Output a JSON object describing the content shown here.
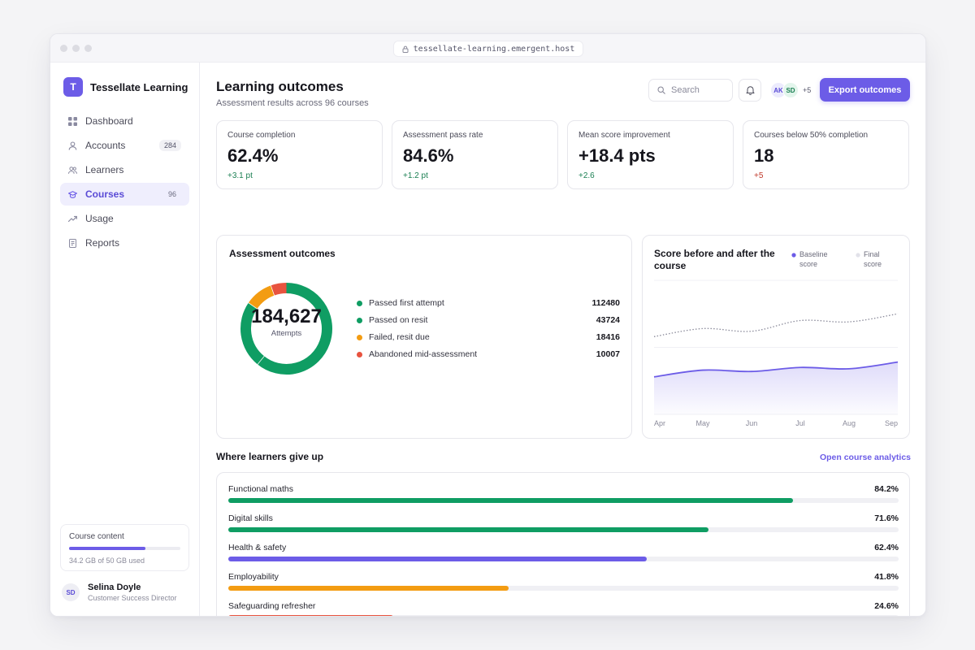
{
  "browser": {
    "url": "tessellate-learning.emergent.host"
  },
  "brand": {
    "logo_letter": "T",
    "name": "Tessellate Learning",
    "accent": "#6c5ce7"
  },
  "sidebar": {
    "items": [
      {
        "label": "Dashboard",
        "icon": "grid-icon",
        "badge": ""
      },
      {
        "label": "Accounts",
        "icon": "user-icon",
        "badge": "284"
      },
      {
        "label": "Learners",
        "icon": "users-icon",
        "badge": ""
      },
      {
        "label": "Courses",
        "icon": "graduation-cap-icon",
        "badge": "96",
        "active": true
      },
      {
        "label": "Usage",
        "icon": "trend-icon",
        "badge": ""
      },
      {
        "label": "Reports",
        "icon": "document-icon",
        "badge": ""
      }
    ],
    "storage": {
      "title": "Course content",
      "used_label": "34.2 GB of 50 GB used",
      "used_fraction": 0.684
    },
    "user": {
      "initials": "SD",
      "name": "Selina Doyle",
      "role": "Customer Success Director"
    }
  },
  "header": {
    "title": "Learning outcomes",
    "subtitle": "Assessment results across 96 courses",
    "search_placeholder": "Search",
    "avatars": [
      "AK",
      "SD"
    ],
    "more_avatars": "+5",
    "export_label": "Export outcomes"
  },
  "kpis": [
    {
      "label": "Course completion",
      "value": "62.4%",
      "delta": "+3.1 pt",
      "delta_color": "#1a7f52"
    },
    {
      "label": "Assessment pass rate",
      "value": "84.6%",
      "delta": "+1.2 pt",
      "delta_color": "#1a7f52"
    },
    {
      "label": "Mean score improvement",
      "value": "+18.4 pts",
      "delta": "+2.6",
      "delta_color": "#1a7f52"
    },
    {
      "label": "Courses below 50% completion",
      "value": "18",
      "delta": "+5",
      "delta_color": "#c0392b"
    }
  ],
  "outcomes": {
    "title": "Assessment outcomes",
    "total": "184,627",
    "total_label": "Attempts",
    "segments": [
      {
        "label": "Passed first attempt",
        "value": 112480,
        "display": "112480",
        "color": "#0f9d63"
      },
      {
        "label": "Passed on resit",
        "value": 43724,
        "display": "43724",
        "color": "#0f9d63"
      },
      {
        "label": "Failed, resit due",
        "value": 18416,
        "display": "18416",
        "color": "#f39c12"
      },
      {
        "label": "Abandoned mid-assessment",
        "value": 10007,
        "display": "10007",
        "color": "#e8533f"
      }
    ]
  },
  "score_chart": {
    "title": "Score before and after the course",
    "legend": [
      {
        "label": "Baseline score",
        "color": "#6c5ce7"
      },
      {
        "label": "Final score",
        "color": "#e2e2ea"
      }
    ]
  },
  "chart_data": {
    "type": "line",
    "x": [
      "Apr",
      "May",
      "Jun",
      "Jul",
      "Aug",
      "Sep"
    ],
    "series": [
      {
        "name": "Final score",
        "values": [
          58,
          64,
          62,
          70,
          69,
          75
        ],
        "style": "dotted",
        "color": "#8a8a9a"
      },
      {
        "name": "Baseline score",
        "values": [
          28,
          33,
          32,
          35,
          34,
          39
        ],
        "style": "solid-area",
        "color": "#6c5ce7"
      }
    ],
    "ylim": [
      0,
      100
    ],
    "grid": true
  },
  "dropoff": {
    "title": "Where learners give up",
    "link": "Open course analytics",
    "rows": [
      {
        "label": "Functional maths",
        "pct_label": "84.2%",
        "pct": 84.2,
        "color": "#0f9d63"
      },
      {
        "label": "Digital skills",
        "pct_label": "71.6%",
        "pct": 71.6,
        "color": "#0f9d63"
      },
      {
        "label": "Health & safety",
        "pct_label": "62.4%",
        "pct": 62.4,
        "color": "#6c5ce7"
      },
      {
        "label": "Employability",
        "pct_label": "41.8%",
        "pct": 41.8,
        "color": "#f39c12"
      },
      {
        "label": "Safeguarding refresher",
        "pct_label": "24.6%",
        "pct": 24.6,
        "color": "#e8533f"
      }
    ]
  }
}
